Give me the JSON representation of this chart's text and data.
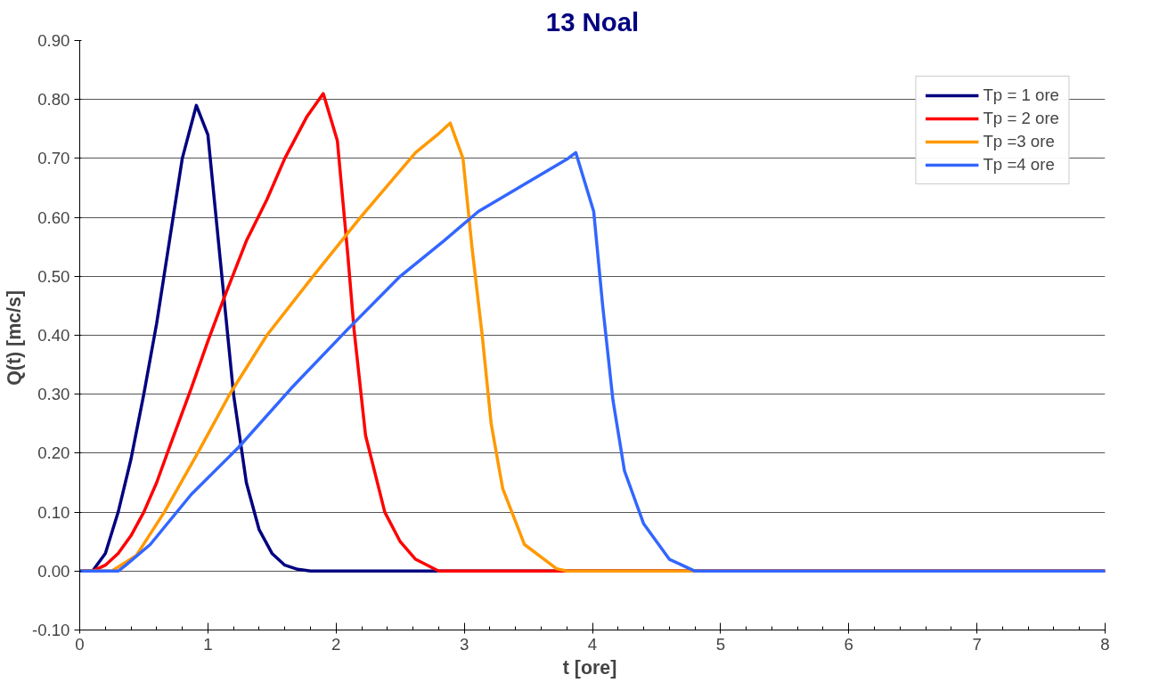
{
  "chart_data": {
    "type": "line",
    "title": "13 Noal",
    "xlabel": "t  [ore]",
    "ylabel": "Q(t)  [mc/s]",
    "xlim": [
      0,
      8
    ],
    "ylim": [
      -0.1,
      0.9
    ],
    "xticks": [
      0,
      1,
      2,
      3,
      4,
      5,
      6,
      7,
      8
    ],
    "yticks": [
      {
        "value": -0.1,
        "label": "-0.10"
      },
      {
        "value": 0,
        "label": "0.00"
      },
      {
        "value": 0.1,
        "label": "0.10"
      },
      {
        "value": 0.2,
        "label": "0.20"
      },
      {
        "value": 0.3,
        "label": "0.30"
      },
      {
        "value": 0.4,
        "label": "0.40"
      },
      {
        "value": 0.5,
        "label": "0.50"
      },
      {
        "value": 0.6,
        "label": "0.60"
      },
      {
        "value": 0.7,
        "label": "0.70"
      },
      {
        "value": 0.8,
        "label": "0.80"
      },
      {
        "value": 0.9,
        "label": "0.90"
      }
    ],
    "grid": "y",
    "legend": "top right",
    "marker": "none",
    "line_style": "solid",
    "series": [
      {
        "name": "Tp = 1 ore",
        "color": "#000080",
        "x": [
          0,
          0.1,
          0.2,
          0.3,
          0.4,
          0.5,
          0.6,
          0.7,
          0.8,
          0.91,
          1.0,
          1.1,
          1.2,
          1.3,
          1.4,
          1.5,
          1.6,
          1.7,
          1.8,
          8
        ],
        "values": [
          0,
          0,
          0.03,
          0.1,
          0.19,
          0.3,
          0.42,
          0.56,
          0.7,
          0.79,
          0.74,
          0.52,
          0.3,
          0.15,
          0.07,
          0.03,
          0.01,
          0.003,
          0,
          0
        ]
      },
      {
        "name": "Tp = 2 ore",
        "color": "#ff0000",
        "x": [
          0,
          0.1,
          0.2,
          0.3,
          0.4,
          0.5,
          0.6,
          0.7,
          0.87,
          1.0,
          1.12,
          1.3,
          1.46,
          1.6,
          1.77,
          1.9,
          2.01,
          2.09,
          2.14,
          2.23,
          2.38,
          2.5,
          2.62,
          2.8,
          8
        ],
        "values": [
          0,
          0,
          0.01,
          0.03,
          0.06,
          0.1,
          0.15,
          0.21,
          0.31,
          0.39,
          0.46,
          0.56,
          0.63,
          0.7,
          0.77,
          0.81,
          0.73,
          0.54,
          0.41,
          0.23,
          0.1,
          0.05,
          0.02,
          0,
          0
        ]
      },
      {
        "name": "Tp =3 ore",
        "color": "#ff9900",
        "x": [
          0,
          0.25,
          0.44,
          0.66,
          0.92,
          1.17,
          1.46,
          1.82,
          2.19,
          2.62,
          2.79,
          2.89,
          2.99,
          3.06,
          3.14,
          3.21,
          3.3,
          3.47,
          3.72,
          3.8,
          8
        ],
        "values": [
          0,
          0,
          0.026,
          0.1,
          0.2,
          0.3,
          0.4,
          0.5,
          0.6,
          0.71,
          0.74,
          0.76,
          0.7,
          0.55,
          0.4,
          0.25,
          0.14,
          0.045,
          0.004,
          0,
          0
        ]
      },
      {
        "name": "Tp =4 ore",
        "color": "#3366ff",
        "x": [
          0,
          0.3,
          0.36,
          0.55,
          0.87,
          1.24,
          1.65,
          2.09,
          2.5,
          2.84,
          3.11,
          3.81,
          3.87,
          4.01,
          4.08,
          4.16,
          4.25,
          4.4,
          4.6,
          4.8,
          8
        ],
        "values": [
          0,
          0,
          0.01,
          0.045,
          0.13,
          0.21,
          0.31,
          0.41,
          0.5,
          0.56,
          0.61,
          0.7,
          0.71,
          0.61,
          0.45,
          0.29,
          0.17,
          0.08,
          0.02,
          0,
          0
        ]
      }
    ]
  }
}
